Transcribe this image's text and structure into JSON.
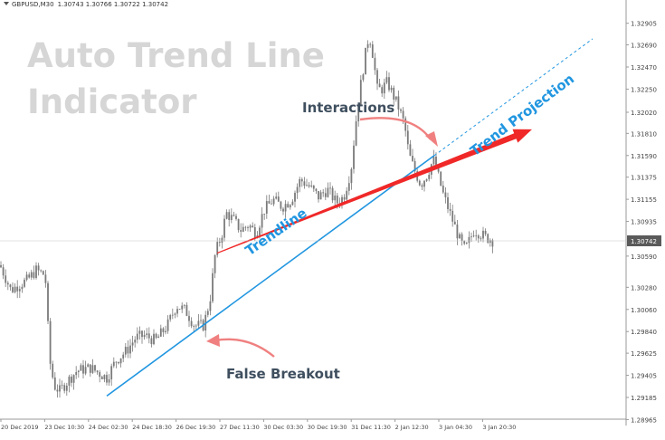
{
  "header": {
    "menu_icon": "triangle-down-icon",
    "symbol": "GBPUSD,M30",
    "quote": "1.30743 1.30766 1.30722 1.30742"
  },
  "watermark": {
    "line1": "Auto Trend Line",
    "line2": "Indicator"
  },
  "annotations": {
    "interactions": "Interactions",
    "false_breakout": "False Breakout",
    "trendline": "Trendline",
    "trend_projection": "Trend Projection"
  },
  "colors": {
    "candles": "#7a7a7a",
    "trendline": "#2196e0",
    "trend_arrow": "#f02828",
    "annotation_arrow": "#f08080",
    "price_label_bg": "#5a5a5a",
    "grid_border": "#9a9a9a"
  },
  "chart_data": {
    "type": "candlestick",
    "title": "",
    "xlabel": "",
    "ylabel": "",
    "ylim": [
      1.2896,
      1.3301
    ],
    "current_price": "1.30742",
    "y_ticks": [
      "1.32905",
      "1.32690",
      "1.32470",
      "1.32250",
      "1.32020",
      "1.31810",
      "1.31590",
      "1.31375",
      "1.31155",
      "1.30935",
      "1.30742",
      "1.30590",
      "1.30280",
      "1.30060",
      "1.29840",
      "1.29625",
      "1.29405",
      "1.29185",
      "1.28965"
    ],
    "x_ticks": [
      "20 Dec 2019",
      "23 Dec 10:30",
      "24 Dec 02:30",
      "24 Dec 18:30",
      "26 Dec 19:30",
      "27 Dec 11:30",
      "30 Dec 03:30",
      "30 Dec 19:30",
      "31 Dec 11:30",
      "2 Jan 12:30",
      "3 Jan 04:30",
      "3 Jan 20:30"
    ],
    "price_path": [
      [
        0,
        1.305
      ],
      [
        5,
        1.304
      ],
      [
        12,
        1.3025
      ],
      [
        20,
        1.303
      ],
      [
        30,
        1.3035
      ],
      [
        40,
        1.3045
      ],
      [
        50,
        1.304
      ],
      [
        55,
        1.2955
      ],
      [
        60,
        1.293
      ],
      [
        66,
        1.2925
      ],
      [
        75,
        1.2935
      ],
      [
        85,
        1.2945
      ],
      [
        100,
        1.2948
      ],
      [
        118,
        1.2938
      ],
      [
        128,
        1.2955
      ],
      [
        140,
        1.2965
      ],
      [
        150,
        1.2978
      ],
      [
        160,
        1.298
      ],
      [
        172,
        1.2975
      ],
      [
        185,
        1.299
      ],
      [
        195,
        1.301
      ],
      [
        205,
        1.3005
      ],
      [
        215,
        1.299
      ],
      [
        225,
        1.299
      ],
      [
        232,
        1.3015
      ],
      [
        238,
        1.3062
      ],
      [
        245,
        1.308
      ],
      [
        250,
        1.3102
      ],
      [
        258,
        1.3095
      ],
      [
        266,
        1.3085
      ],
      [
        275,
        1.309
      ],
      [
        283,
        1.3082
      ],
      [
        292,
        1.3105
      ],
      [
        302,
        1.3115
      ],
      [
        312,
        1.3108
      ],
      [
        322,
        1.3115
      ],
      [
        332,
        1.3135
      ],
      [
        342,
        1.3128
      ],
      [
        352,
        1.3118
      ],
      [
        362,
        1.3125
      ],
      [
        372,
        1.3112
      ],
      [
        380,
        1.3118
      ],
      [
        388,
        1.3145
      ],
      [
        393,
        1.319
      ],
      [
        398,
        1.3225
      ],
      [
        403,
        1.3255
      ],
      [
        408,
        1.328
      ],
      [
        412,
        1.326
      ],
      [
        417,
        1.3225
      ],
      [
        422,
        1.3225
      ],
      [
        428,
        1.3232
      ],
      [
        433,
        1.3222
      ],
      [
        440,
        1.3208
      ],
      [
        447,
        1.319
      ],
      [
        452,
        1.316
      ],
      [
        458,
        1.3145
      ],
      [
        465,
        1.313
      ],
      [
        472,
        1.314
      ],
      [
        479,
        1.3155
      ],
      [
        484,
        1.314
      ],
      [
        490,
        1.312
      ],
      [
        496,
        1.3105
      ],
      [
        502,
        1.309
      ],
      [
        508,
        1.3075
      ],
      [
        514,
        1.3065
      ],
      [
        519,
        1.3075
      ],
      [
        524,
        1.3085
      ],
      [
        530,
        1.3082
      ],
      [
        536,
        1.3078
      ],
      [
        542,
        1.3076
      ],
      [
        545,
        1.3074
      ]
    ],
    "lines": [
      {
        "name": "Trendline",
        "x": [
          118,
          480
        ],
        "y": [
          1.292,
          1.3159
        ]
      },
      {
        "name": "Trendline projection",
        "style": "dashed",
        "x": [
          480,
          655
        ],
        "y": [
          1.3159,
          1.3275
        ]
      },
      {
        "name": "Trend Projection",
        "x": [
          240,
          588
        ],
        "y": [
          1.3062,
          1.3185
        ]
      }
    ]
  }
}
